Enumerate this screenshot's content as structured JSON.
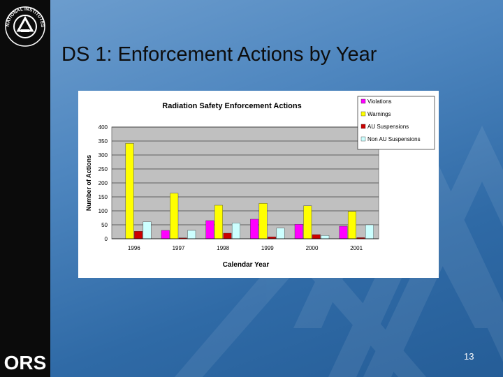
{
  "slide": {
    "title": "DS 1: Enforcement Actions by Year",
    "page_number": "13",
    "logo_text": "ORS",
    "seal_text": "NATIONAL INSTITUTES OF HEALTH"
  },
  "colors": {
    "background": "#4e86bf",
    "sidebar": "#0b0b0b",
    "plot_area": "#c0c0c0"
  },
  "chart_data": {
    "type": "bar",
    "title": "Radiation Safety Enforcement Actions",
    "xlabel": "Calendar Year",
    "ylabel": "Number of Actions",
    "ylim": [
      0,
      400
    ],
    "yticks": [
      0,
      50,
      100,
      150,
      200,
      250,
      300,
      350,
      400
    ],
    "categories": [
      "1996",
      "1997",
      "1998",
      "1999",
      "2000",
      "2001"
    ],
    "grid": "y",
    "legend_position": "top-right",
    "series": [
      {
        "name": "Violations",
        "color": "#ff00ff",
        "values": [
          0,
          30,
          65,
          70,
          52,
          45
        ]
      },
      {
        "name": "Warnings",
        "color": "#ffff00",
        "values": [
          342,
          163,
          120,
          127,
          118,
          98
        ]
      },
      {
        "name": "AU Suspensions",
        "color": "#cc0000",
        "values": [
          27,
          3,
          20,
          7,
          15,
          4
        ]
      },
      {
        "name": "Non AU Suspensions",
        "color": "#ccffff",
        "values": [
          61,
          30,
          57,
          38,
          12,
          50
        ]
      }
    ]
  }
}
